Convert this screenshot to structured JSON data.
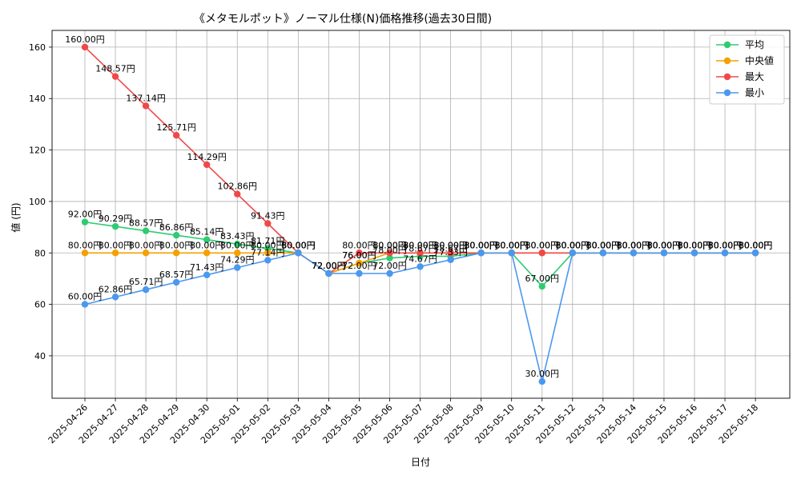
{
  "chart_data": {
    "type": "line",
    "title": "《メタモルポット》ノーマル仕様(N)価格推移(過去30日間)",
    "xlabel": "日付",
    "ylabel": "値 (円)",
    "ylim": [
      23.5,
      166.5
    ],
    "yticks": [
      40,
      60,
      80,
      100,
      120,
      140,
      160
    ],
    "grid": true,
    "legend_position": "top-right",
    "value_suffix": "円",
    "categories": [
      "2025-04-26",
      "2025-04-27",
      "2025-04-28",
      "2025-04-29",
      "2025-04-30",
      "2025-05-01",
      "2025-05-02",
      "2025-05-03",
      "2025-05-04",
      "2025-05-05",
      "2025-05-06",
      "2025-05-07",
      "2025-05-08",
      "2025-05-09",
      "2025-05-10",
      "2025-05-11",
      "2025-05-12",
      "2025-05-13",
      "2025-05-14",
      "2025-05-15",
      "2025-05-16",
      "2025-05-17",
      "2025-05-18"
    ],
    "series": [
      {
        "name": "平均",
        "color": "#2ecc71",
        "values": [
          92.0,
          90.29,
          88.57,
          86.86,
          85.14,
          83.43,
          81.71,
          80.0,
          72.0,
          76.0,
          78.0,
          78.67,
          78.67,
          80.0,
          80.0,
          67.0,
          80.0,
          80.0,
          80.0,
          80.0,
          80.0,
          80.0,
          80.0
        ],
        "labels": [
          "92.00円",
          "90.29円",
          "88.57円",
          "86.86円",
          "85.14円",
          "83.43円",
          "81.71円",
          "80.00円",
          "72.00円",
          "76.00円",
          "78.00円",
          "78.67円",
          "78.67円",
          "80.00円",
          "80.00円",
          "67.00円",
          "80.00円",
          "80.00円",
          "80.00円",
          "80.00円",
          "80.00円",
          "80.00円",
          "80.00円"
        ]
      },
      {
        "name": "中央値",
        "color": "#f5a000",
        "values": [
          80,
          80,
          80,
          80,
          80,
          80,
          80,
          80,
          72,
          76,
          80,
          80,
          80,
          80,
          80,
          80,
          80,
          80,
          80,
          80,
          80,
          80,
          80
        ],
        "labels": [
          "80.00円",
          "80.00円",
          "80.00円",
          "80.00円",
          "80.00円",
          "80.00円",
          "80.00円",
          "80.00円",
          "72.00円",
          "76.00円",
          "80.00円",
          "80.00円",
          "80.00円",
          "80.00円",
          "80.00円",
          "80.00円",
          "80.00円",
          "80.00円",
          "80.00円",
          "80.00円",
          "80.00円",
          "80.00円",
          "80.00円"
        ]
      },
      {
        "name": "最大",
        "color": "#f04848",
        "values": [
          160.0,
          148.57,
          137.14,
          125.71,
          114.29,
          102.86,
          91.43,
          80.0,
          72.0,
          80.0,
          80.0,
          80.0,
          80.0,
          80.0,
          80.0,
          80.0,
          80.0,
          80.0,
          80.0,
          80.0,
          80.0,
          80.0,
          80.0
        ],
        "labels": [
          "160.00円",
          "148.57円",
          "137.14円",
          "125.71円",
          "114.29円",
          "102.86円",
          "91.43円",
          "80.00円",
          "72.00円",
          "80.00円",
          "80.00円",
          "80.00円",
          "80.00円",
          "80.00円",
          "80.00円",
          "80.00円",
          "80.00円",
          "80.00円",
          "80.00円",
          "80.00円",
          "80.00円",
          "80.00円",
          "80.00円"
        ]
      },
      {
        "name": "最小",
        "color": "#4a98f0",
        "values": [
          60.0,
          62.86,
          65.71,
          68.57,
          71.43,
          74.29,
          77.14,
          80.0,
          72.0,
          72.0,
          72.0,
          74.67,
          77.33,
          80.0,
          80.0,
          30.0,
          80.0,
          80.0,
          80.0,
          80.0,
          80.0,
          80.0,
          80.0
        ],
        "labels": [
          "60.00円",
          "62.86円",
          "65.71円",
          "68.57円",
          "71.43円",
          "74.29円",
          "77.14円",
          "80.00円",
          "72.00円",
          "72.00円",
          "72.00円",
          "74.67円",
          "77.33円",
          "80.00円",
          "80.00円",
          "30.00円",
          "80.00円",
          "80.00円",
          "80.00円",
          "80.00円",
          "80.00円",
          "80.00円",
          "80.00円"
        ]
      }
    ]
  }
}
